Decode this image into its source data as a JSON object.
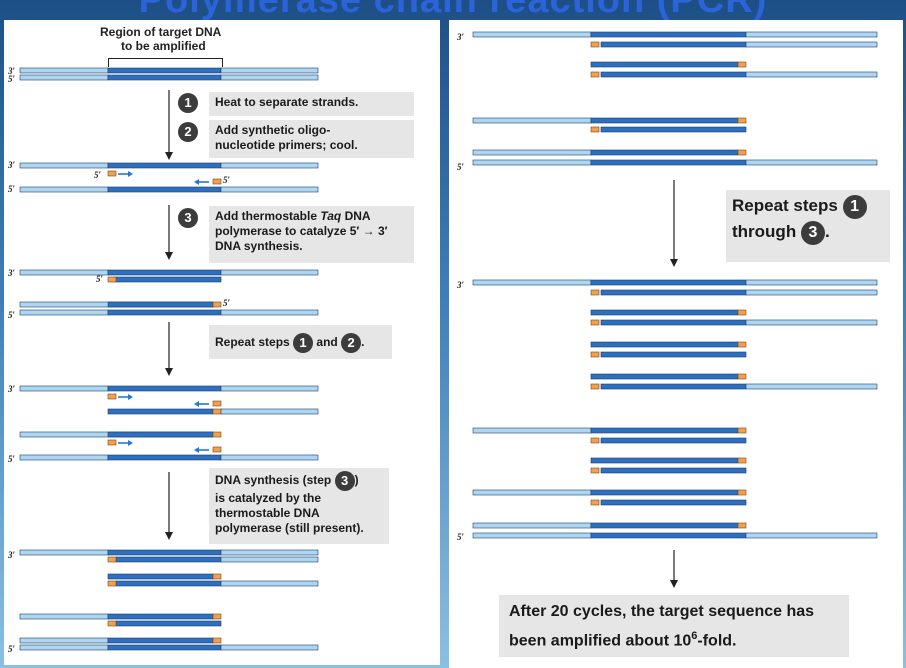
{
  "title": "Polymerase chain reaction (PCR)",
  "colors": {
    "light_strand": "#aed6f1",
    "dark_strand": "#2f6fc0",
    "primer": "#f0a050",
    "arrow": "#1f7ad8",
    "step_circle": "#3c3c3c",
    "box_bg": "#e6e6e6"
  },
  "left": {
    "region_label_line1": "Region of target DNA",
    "region_label_line2": "to be amplified",
    "step1_num": "1",
    "step1_text": "Heat to separate strands.",
    "step2_num": "2",
    "step2_text_line1": "Add synthetic oligo-",
    "step2_text_line2": "nucleotide primers; cool.",
    "step3_num": "3",
    "step3_text_line1a": "Add thermostable ",
    "step3_text_line1b": "Taq",
    "step3_text_line1c": " DNA",
    "step3_text_line2": "polymerase to catalyze 5′ → 3′",
    "step3_text_line3": "DNA synthesis.",
    "repeat_text_a": "Repeat steps",
    "repeat_num1": "1",
    "repeat_text_b": "and",
    "repeat_num2": "2",
    "repeat_text_c": ".",
    "synth_line1a": "DNA synthesis (step ",
    "synth_num": "3",
    "synth_line1b": ")",
    "synth_line2": "is catalyzed by  the",
    "synth_line3": "thermostable DNA",
    "synth_line4": "polymerase (still present).",
    "end3": "3′",
    "end5": "5′"
  },
  "right": {
    "repeat_line1": "Repeat steps",
    "repeat_num1": "1",
    "repeat_line2": "through",
    "repeat_num2": "3",
    "repeat_period": ".",
    "final_line1": "After 20 cycles, the target sequence has",
    "final_line2a": "been amplified about 10",
    "final_sup": "6",
    "final_line2b": "-fold.",
    "end3": "3′",
    "end5": "5′"
  }
}
